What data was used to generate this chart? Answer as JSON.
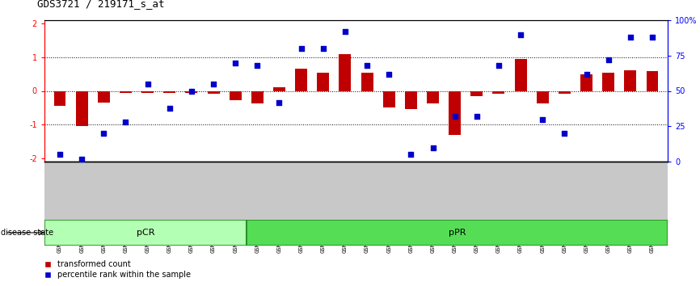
{
  "title": "GDS3721 / 219171_s_at",
  "samples": [
    "GSM559062",
    "GSM559063",
    "GSM559064",
    "GSM559065",
    "GSM559066",
    "GSM559067",
    "GSM559068",
    "GSM559069",
    "GSM559042",
    "GSM559043",
    "GSM559044",
    "GSM559045",
    "GSM559046",
    "GSM559047",
    "GSM559048",
    "GSM559049",
    "GSM559050",
    "GSM559051",
    "GSM559052",
    "GSM559053",
    "GSM559054",
    "GSM559055",
    "GSM559056",
    "GSM559057",
    "GSM559058",
    "GSM559059",
    "GSM559060",
    "GSM559061"
  ],
  "red_values": [
    -0.45,
    -1.05,
    -0.35,
    -0.05,
    -0.05,
    -0.05,
    -0.05,
    -0.08,
    -0.28,
    -0.38,
    0.12,
    0.65,
    0.55,
    1.1,
    0.55,
    -0.5,
    -0.55,
    -0.38,
    -1.3,
    -0.15,
    -0.08,
    0.95,
    -0.38,
    -0.08,
    0.5,
    0.55,
    0.62,
    0.6
  ],
  "blue_values": [
    5,
    2,
    20,
    28,
    55,
    38,
    50,
    55,
    70,
    68,
    42,
    80,
    80,
    92,
    68,
    62,
    5,
    10,
    32,
    32,
    68,
    90,
    30,
    20,
    62,
    72,
    88,
    88
  ],
  "pCR_count": 9,
  "pPR_count": 19,
  "ylim_left": [
    -2.1,
    2.1
  ],
  "bar_color": "#c00000",
  "dot_color": "#0000cd",
  "pCR_color": "#b3ffb3",
  "pPR_color": "#55dd55",
  "tick_bg_color": "#c8c8c8",
  "disease_border_color": "#228822"
}
